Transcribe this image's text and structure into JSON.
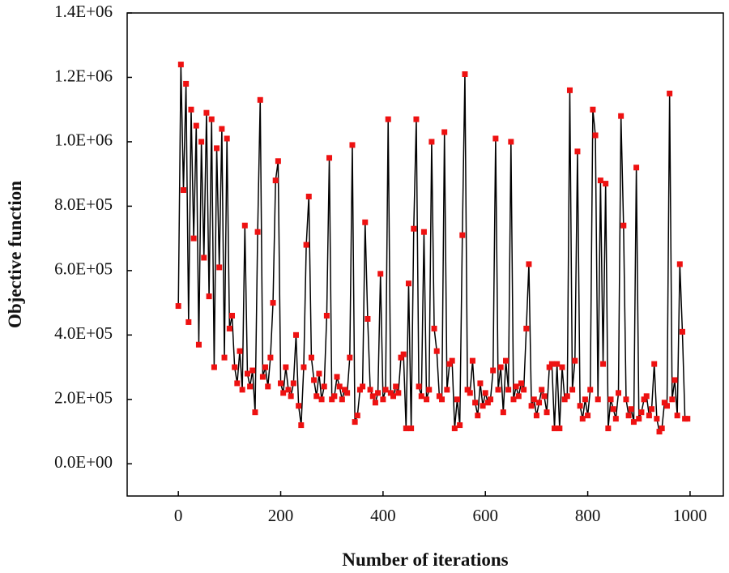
{
  "chart_data": {
    "type": "line",
    "x_label": "Number of iterations",
    "y_label": "Objective function",
    "line_color": "#000000",
    "marker_color": "#ee1111",
    "xlim": [
      -100,
      1065
    ],
    "ylim": [
      -100000,
      1400000
    ],
    "xticks": [
      0,
      200,
      400,
      600,
      800,
      1000
    ],
    "yticks": [
      {
        "value": 0,
        "label": "0.0E+00"
      },
      {
        "value": 200000,
        "label": "2.0E+05"
      },
      {
        "value": 400000,
        "label": "4.0E+05"
      },
      {
        "value": 600000,
        "label": "6.0E+05"
      },
      {
        "value": 800000,
        "label": "8.0E+05"
      },
      {
        "value": 1000000,
        "label": "1.0E+06"
      },
      {
        "value": 1200000,
        "label": "1.2E+06"
      },
      {
        "value": 1400000,
        "label": "1.4E+06"
      }
    ],
    "x": [
      0,
      5,
      10,
      15,
      20,
      25,
      30,
      35,
      40,
      45,
      50,
      55,
      60,
      65,
      70,
      75,
      80,
      85,
      90,
      95,
      100,
      105,
      110,
      115,
      120,
      125,
      130,
      135,
      140,
      145,
      150,
      155,
      160,
      165,
      170,
      175,
      180,
      185,
      190,
      195,
      200,
      205,
      210,
      215,
      220,
      225,
      230,
      235,
      240,
      245,
      250,
      255,
      260,
      265,
      270,
      275,
      280,
      285,
      290,
      295,
      300,
      305,
      310,
      315,
      320,
      325,
      330,
      335,
      340,
      345,
      350,
      355,
      360,
      365,
      370,
      375,
      380,
      385,
      390,
      395,
      400,
      405,
      410,
      415,
      420,
      425,
      430,
      435,
      440,
      445,
      450,
      455,
      460,
      465,
      470,
      475,
      480,
      485,
      490,
      495,
      500,
      505,
      510,
      515,
      520,
      525,
      530,
      535,
      540,
      545,
      550,
      555,
      560,
      565,
      570,
      575,
      580,
      585,
      590,
      595,
      600,
      605,
      610,
      615,
      620,
      625,
      630,
      635,
      640,
      645,
      650,
      655,
      660,
      665,
      670,
      675,
      680,
      685,
      690,
      695,
      700,
      705,
      710,
      715,
      720,
      725,
      730,
      735,
      740,
      745,
      750,
      755,
      760,
      765,
      770,
      775,
      780,
      785,
      790,
      795,
      800,
      805,
      810,
      815,
      820,
      825,
      830,
      835,
      840,
      845,
      850,
      855,
      860,
      865,
      870,
      875,
      880,
      885,
      890,
      895,
      900,
      905,
      910,
      915,
      920,
      925,
      930,
      935,
      940,
      945,
      950,
      955,
      960,
      965,
      970,
      975,
      980,
      985,
      990,
      995
    ],
    "values": [
      490000,
      1240000,
      850000,
      1180000,
      440000,
      1100000,
      700000,
      1050000,
      370000,
      1000000,
      640000,
      1090000,
      520000,
      1070000,
      300000,
      980000,
      610000,
      1040000,
      330000,
      1010000,
      420000,
      460000,
      300000,
      250000,
      350000,
      230000,
      740000,
      280000,
      240000,
      290000,
      160000,
      720000,
      1130000,
      270000,
      300000,
      240000,
      330000,
      500000,
      880000,
      940000,
      250000,
      220000,
      300000,
      230000,
      210000,
      250000,
      400000,
      180000,
      120000,
      300000,
      680000,
      830000,
      330000,
      260000,
      210000,
      280000,
      200000,
      240000,
      460000,
      950000,
      200000,
      210000,
      270000,
      240000,
      200000,
      230000,
      220000,
      330000,
      990000,
      130000,
      150000,
      230000,
      240000,
      750000,
      450000,
      230000,
      210000,
      190000,
      220000,
      590000,
      200000,
      230000,
      1070000,
      220000,
      210000,
      240000,
      220000,
      330000,
      340000,
      110000,
      560000,
      110000,
      730000,
      1070000,
      240000,
      210000,
      720000,
      200000,
      230000,
      1000000,
      420000,
      350000,
      210000,
      200000,
      1030000,
      230000,
      310000,
      320000,
      110000,
      200000,
      120000,
      710000,
      1210000,
      230000,
      220000,
      320000,
      190000,
      150000,
      250000,
      180000,
      220000,
      190000,
      200000,
      290000,
      1010000,
      230000,
      300000,
      160000,
      320000,
      230000,
      1000000,
      200000,
      240000,
      210000,
      250000,
      230000,
      420000,
      620000,
      180000,
      200000,
      150000,
      190000,
      230000,
      210000,
      160000,
      300000,
      310000,
      110000,
      310000,
      110000,
      300000,
      200000,
      210000,
      1160000,
      230000,
      320000,
      970000,
      180000,
      140000,
      200000,
      150000,
      230000,
      1100000,
      1020000,
      200000,
      880000,
      310000,
      870000,
      110000,
      200000,
      170000,
      140000,
      220000,
      1080000,
      740000,
      200000,
      150000,
      170000,
      130000,
      920000,
      140000,
      160000,
      200000,
      210000,
      150000,
      170000,
      310000,
      140000,
      100000,
      110000,
      190000,
      180000,
      1150000,
      200000,
      260000,
      150000,
      620000,
      410000,
      140000,
      140000
    ]
  }
}
